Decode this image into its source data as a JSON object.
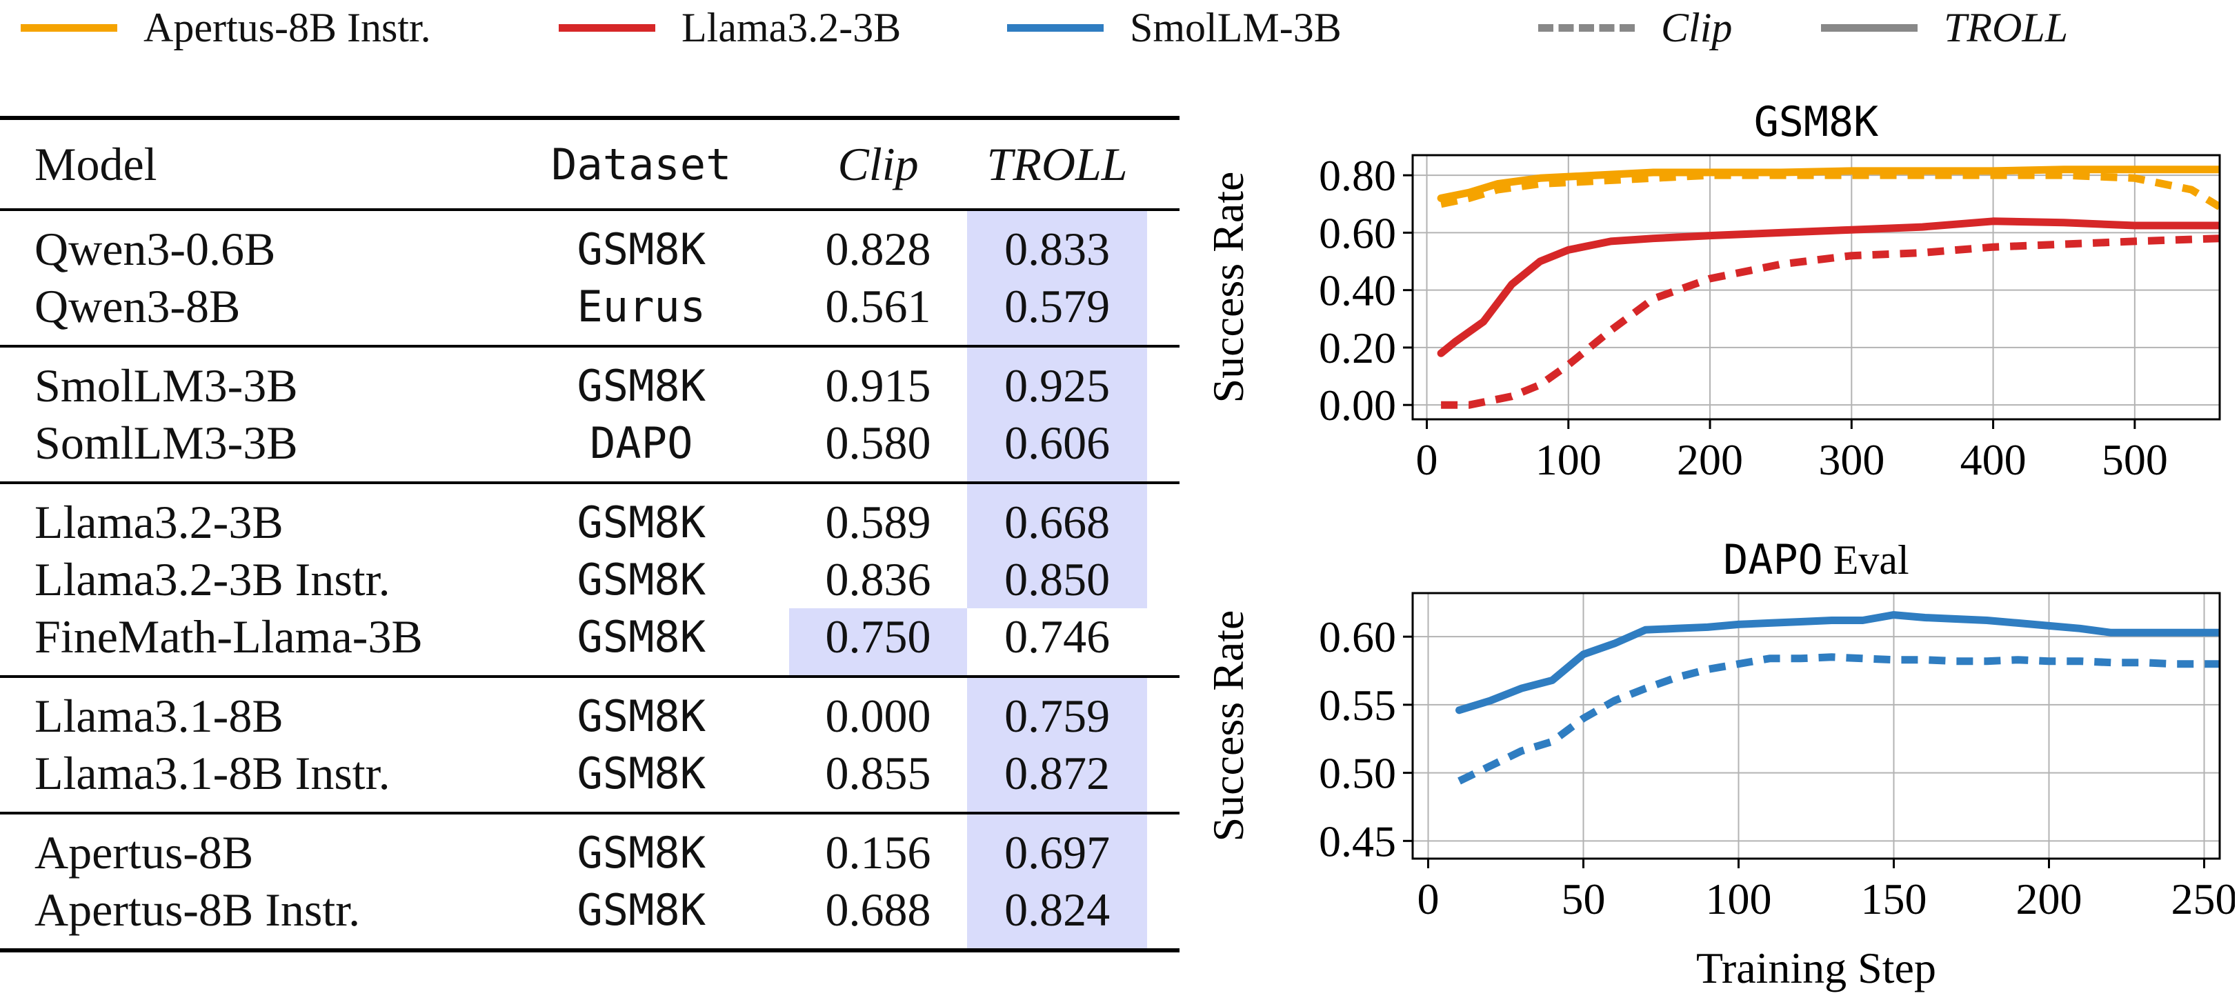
{
  "legend": {
    "items": [
      {
        "label": "Apertus-8B Instr.",
        "color": "#f5a300",
        "style": "solid",
        "italic": false
      },
      {
        "label": "Llama3.2-3B",
        "color": "#d62728",
        "style": "solid",
        "italic": false
      },
      {
        "label": "SmolLM-3B",
        "color": "#2f7dc1",
        "style": "solid",
        "italic": false
      },
      {
        "label": "Clip",
        "color": "#888888",
        "style": "dashed",
        "italic": true
      },
      {
        "label": "TROLL",
        "color": "#888888",
        "style": "solid",
        "italic": true
      }
    ]
  },
  "table": {
    "headers": {
      "model": "Model",
      "dataset": "Dataset",
      "clip": "Clip",
      "troll": "TROLL"
    },
    "highlight_color": "#d9dcfb",
    "groups": [
      {
        "rows": [
          {
            "model": "Qwen3-0.6B",
            "dataset": "GSM8K",
            "clip": "0.828",
            "troll": "0.833",
            "best": "troll"
          },
          {
            "model": "Qwen3-8B",
            "dataset": "Eurus",
            "clip": "0.561",
            "troll": "0.579",
            "best": "troll"
          }
        ]
      },
      {
        "rows": [
          {
            "model": "SmolLM3-3B",
            "dataset": "GSM8K",
            "clip": "0.915",
            "troll": "0.925",
            "best": "troll"
          },
          {
            "model": "SomlLM3-3B",
            "dataset": "DAPO",
            "clip": "0.580",
            "troll": "0.606",
            "best": "troll"
          }
        ]
      },
      {
        "rows": [
          {
            "model": "Llama3.2-3B",
            "dataset": "GSM8K",
            "clip": "0.589",
            "troll": "0.668",
            "best": "troll"
          },
          {
            "model": "Llama3.2-3B Instr.",
            "dataset": "GSM8K",
            "clip": "0.836",
            "troll": "0.850",
            "best": "troll"
          },
          {
            "model": "FineMath-Llama-3B",
            "dataset": "GSM8K",
            "clip": "0.750",
            "troll": "0.746",
            "best": "clip"
          }
        ]
      },
      {
        "rows": [
          {
            "model": "Llama3.1-8B",
            "dataset": "GSM8K",
            "clip": "0.000",
            "troll": "0.759",
            "best": "troll"
          },
          {
            "model": "Llama3.1-8B Instr.",
            "dataset": "GSM8K",
            "clip": "0.855",
            "troll": "0.872",
            "best": "troll"
          }
        ]
      },
      {
        "rows": [
          {
            "model": "Apertus-8B",
            "dataset": "GSM8K",
            "clip": "0.156",
            "troll": "0.697",
            "best": "troll"
          },
          {
            "model": "Apertus-8B Instr.",
            "dataset": "GSM8K",
            "clip": "0.688",
            "troll": "0.824",
            "best": "troll"
          }
        ]
      }
    ]
  },
  "chart_data": [
    {
      "type": "line",
      "title_mono": "GSM8K",
      "title_rest": "",
      "xlabel": "",
      "ylabel": "Success Rate",
      "xlim": [
        -10,
        560
      ],
      "ylim": [
        -0.05,
        0.87
      ],
      "xticks": [
        0,
        100,
        200,
        300,
        400,
        500
      ],
      "yticks": [
        0.0,
        0.2,
        0.4,
        0.6,
        0.8
      ],
      "ytick_labels": [
        "0.00",
        "0.20",
        "0.40",
        "0.60",
        "0.80"
      ],
      "grid": true,
      "series": [
        {
          "color": "#f5a300",
          "method": "TROLL",
          "x": [
            10,
            30,
            50,
            80,
            120,
            160,
            200,
            250,
            300,
            350,
            400,
            450,
            500,
            560
          ],
          "y": [
            0.72,
            0.74,
            0.77,
            0.79,
            0.8,
            0.81,
            0.81,
            0.81,
            0.815,
            0.815,
            0.815,
            0.82,
            0.82,
            0.82
          ]
        },
        {
          "color": "#f5a300",
          "method": "Clip",
          "x": [
            10,
            30,
            50,
            80,
            120,
            160,
            200,
            250,
            300,
            350,
            400,
            450,
            500,
            540,
            560
          ],
          "y": [
            0.7,
            0.72,
            0.75,
            0.77,
            0.78,
            0.79,
            0.8,
            0.8,
            0.8,
            0.8,
            0.8,
            0.8,
            0.79,
            0.75,
            0.69
          ]
        },
        {
          "color": "#d62728",
          "method": "TROLL",
          "x": [
            10,
            20,
            40,
            60,
            80,
            100,
            130,
            160,
            200,
            250,
            300,
            350,
            400,
            450,
            500,
            560
          ],
          "y": [
            0.18,
            0.22,
            0.29,
            0.42,
            0.5,
            0.54,
            0.57,
            0.58,
            0.59,
            0.6,
            0.61,
            0.62,
            0.64,
            0.635,
            0.625,
            0.625
          ]
        },
        {
          "color": "#d62728",
          "method": "Clip",
          "x": [
            10,
            30,
            60,
            80,
            100,
            130,
            160,
            200,
            250,
            300,
            350,
            400,
            450,
            500,
            560
          ],
          "y": [
            0.0,
            0.0,
            0.03,
            0.07,
            0.14,
            0.26,
            0.37,
            0.44,
            0.49,
            0.52,
            0.53,
            0.55,
            0.56,
            0.57,
            0.58
          ]
        }
      ]
    },
    {
      "type": "line",
      "title_mono": "DAPO",
      "title_rest": " Eval",
      "xlabel": "Training Step",
      "ylabel": "Success Rate",
      "xlim": [
        -5,
        255
      ],
      "ylim": [
        0.437,
        0.632
      ],
      "xticks": [
        0,
        50,
        100,
        150,
        200,
        250
      ],
      "yticks": [
        0.45,
        0.5,
        0.55,
        0.6
      ],
      "ytick_labels": [
        "0.45",
        "0.50",
        "0.55",
        "0.60"
      ],
      "grid": true,
      "series": [
        {
          "color": "#2f7dc1",
          "method": "TROLL",
          "x": [
            10,
            20,
            30,
            40,
            50,
            60,
            70,
            80,
            90,
            100,
            110,
            120,
            130,
            140,
            150,
            160,
            170,
            180,
            190,
            200,
            210,
            220,
            230,
            240,
            255
          ],
          "y": [
            0.546,
            0.553,
            0.562,
            0.568,
            0.587,
            0.595,
            0.605,
            0.606,
            0.607,
            0.609,
            0.61,
            0.611,
            0.612,
            0.612,
            0.616,
            0.614,
            0.613,
            0.612,
            0.61,
            0.608,
            0.606,
            0.603,
            0.603,
            0.603,
            0.603
          ]
        },
        {
          "color": "#2f7dc1",
          "method": "Clip",
          "x": [
            10,
            20,
            30,
            40,
            50,
            60,
            70,
            80,
            90,
            100,
            110,
            120,
            130,
            140,
            150,
            160,
            170,
            180,
            190,
            200,
            210,
            220,
            230,
            240,
            255
          ],
          "y": [
            0.494,
            0.505,
            0.516,
            0.523,
            0.54,
            0.553,
            0.562,
            0.57,
            0.576,
            0.58,
            0.584,
            0.584,
            0.585,
            0.584,
            0.583,
            0.583,
            0.582,
            0.582,
            0.583,
            0.582,
            0.582,
            0.581,
            0.581,
            0.58,
            0.58
          ]
        }
      ]
    }
  ]
}
